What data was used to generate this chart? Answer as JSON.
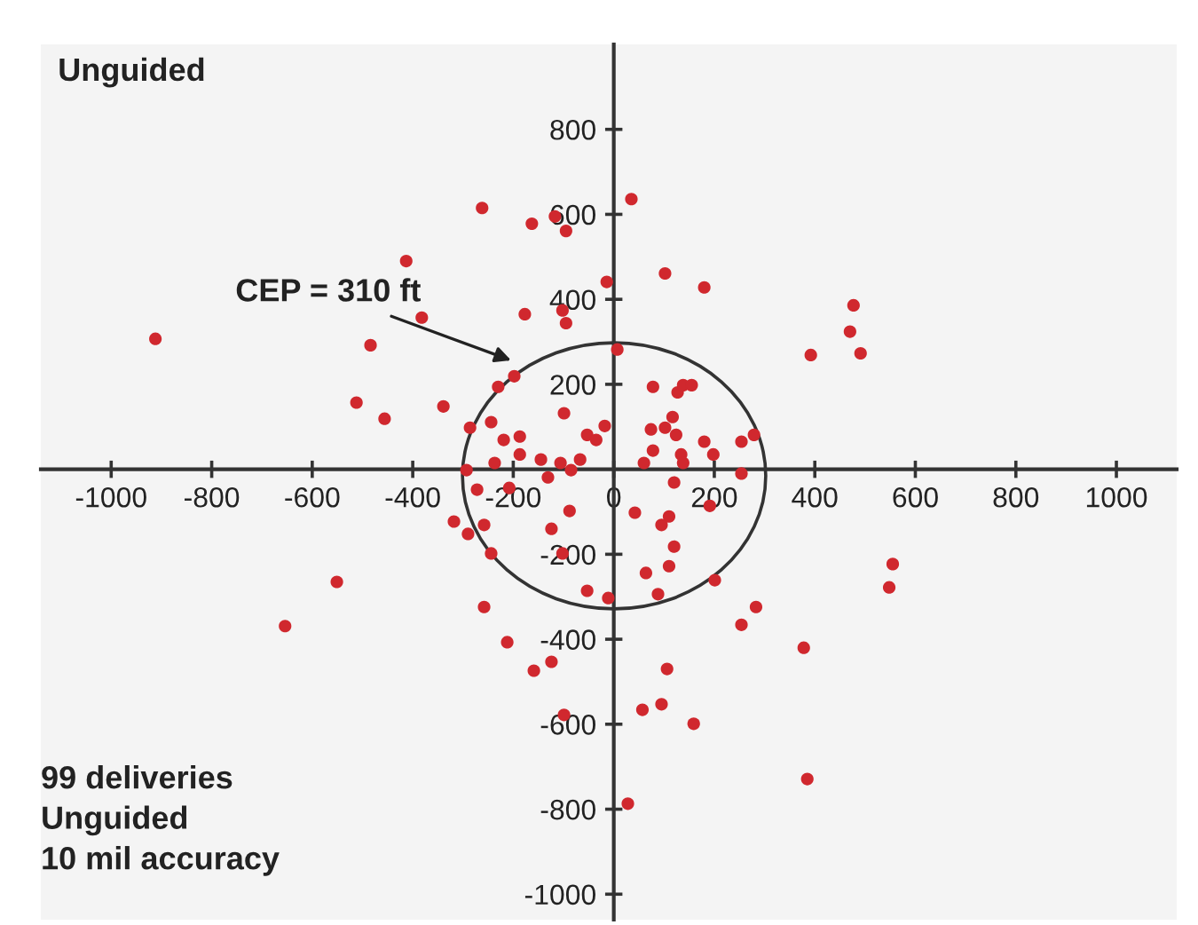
{
  "chart_data": {
    "type": "scatter",
    "title": "Unguided",
    "annotations": [
      "CEP = 310 ft",
      "99 deliveries\nUnguided\n10 mil accuracy"
    ],
    "xlim": [
      -1140,
      1120
    ],
    "ylim": [
      -1060,
      1000
    ],
    "xticks": [
      -1000,
      -800,
      -600,
      -400,
      -200,
      0,
      200,
      400,
      600,
      800,
      1000
    ],
    "yticks": [
      -1000,
      -800,
      -600,
      -400,
      -200,
      200,
      400,
      600,
      800
    ],
    "grid": false,
    "legend": false,
    "marker": "circle",
    "series": [
      {
        "color": "#d0282e",
        "x": [
          -912,
          -484,
          -413,
          -382,
          -262,
          -163,
          -117,
          -95,
          -14,
          -177,
          -102,
          -95,
          7,
          -512,
          -456,
          -339,
          -198,
          -230,
          -99,
          -286,
          -244,
          -219,
          -187,
          -53,
          -35,
          -18,
          -187,
          -237,
          -145,
          -131,
          -106,
          -85,
          -67,
          -293,
          -272,
          -318,
          -290,
          -258,
          -244,
          -124,
          -88,
          -102,
          -53,
          -258,
          -11,
          -208,
          102,
          180,
          78,
          127,
          138,
          155,
          74,
          102,
          117,
          124,
          180,
          198,
          254,
          279,
          78,
          60,
          134,
          138,
          254,
          120,
          42,
          95,
          110,
          191,
          120,
          64,
          110,
          201,
          88,
          283,
          254,
          378,
          548,
          555,
          106,
          57,
          95,
          159,
          385,
          28,
          392,
          470,
          477,
          491,
          35,
          -551,
          -654,
          -212,
          -159,
          -124,
          -99
        ],
        "values": [
          307,
          292,
          490,
          357,
          615,
          578,
          595,
          561,
          441,
          365,
          374,
          344,
          282,
          157,
          119,
          148,
          219,
          194,
          132,
          98,
          111,
          69,
          77,
          81,
          69,
          102,
          35,
          15,
          23,
          -19,
          15,
          -2,
          23,
          -2,
          -48,
          -123,
          -152,
          -131,
          -198,
          -140,
          -98,
          -198,
          -286,
          -324,
          -303,
          -44,
          461,
          428,
          194,
          181,
          198,
          198,
          94,
          98,
          123,
          81,
          65,
          35,
          65,
          81,
          44,
          15,
          35,
          15,
          -10,
          -31,
          -102,
          -131,
          -111,
          -86,
          -182,
          -244,
          -228,
          -261,
          -294,
          -324,
          -366,
          -420,
          -278,
          -223,
          -470,
          -566,
          -553,
          -599,
          -729,
          -787,
          269,
          324,
          386,
          273,
          636,
          -265,
          -369,
          -407,
          -474,
          -453,
          -578
        ]
      }
    ]
  }
}
